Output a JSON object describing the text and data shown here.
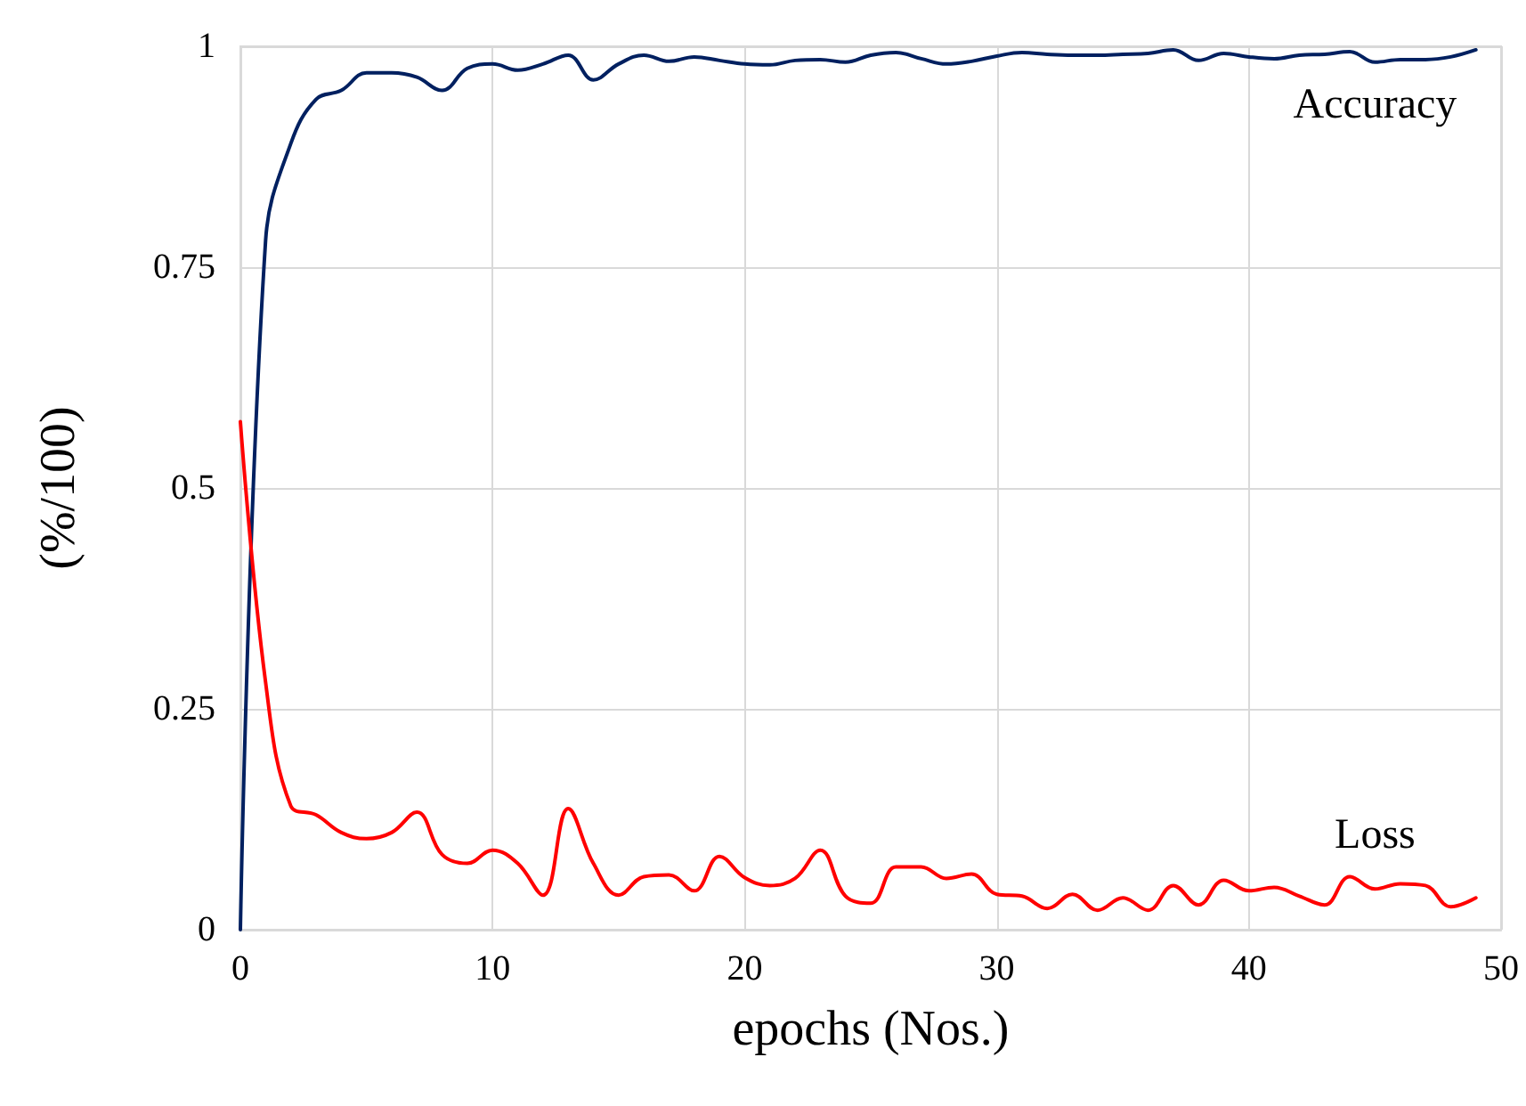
{
  "chart_data": {
    "type": "line",
    "xlabel": "epochs (Nos.)",
    "ylabel": "(%/100)",
    "x": [
      0,
      1,
      2,
      3,
      4,
      5,
      6,
      7,
      8,
      9,
      10,
      11,
      12,
      13,
      14,
      15,
      16,
      17,
      18,
      19,
      20,
      21,
      22,
      23,
      24,
      25,
      26,
      27,
      28,
      29,
      30,
      31,
      32,
      33,
      34,
      35,
      36,
      37,
      38,
      39,
      40,
      41,
      42,
      43,
      44,
      45,
      46,
      47,
      48,
      49
    ],
    "series": [
      {
        "name": "Accuracy",
        "color": "#002060",
        "values": [
          0,
          0.78,
          0.89,
          0.94,
          0.95,
          0.97,
          0.97,
          0.965,
          0.95,
          0.975,
          0.98,
          0.973,
          0.98,
          0.99,
          0.962,
          0.98,
          0.99,
          0.983,
          0.988,
          0.984,
          0.98,
          0.979,
          0.984,
          0.985,
          0.982,
          0.99,
          0.993,
          0.986,
          0.98,
          0.983,
          0.989,
          0.993,
          0.991,
          0.99,
          0.99,
          0.991,
          0.992,
          0.996,
          0.984,
          0.992,
          0.988,
          0.986,
          0.99,
          0.991,
          0.994,
          0.982,
          0.985,
          0.985,
          0.988,
          0.996
        ]
      },
      {
        "name": "Loss",
        "color": "#ff0000",
        "values": [
          0.575,
          0.28,
          0.14,
          0.13,
          0.11,
          0.103,
          0.11,
          0.133,
          0.085,
          0.075,
          0.09,
          0.075,
          0.039,
          0.137,
          0.075,
          0.039,
          0.06,
          0.062,
          0.044,
          0.083,
          0.059,
          0.05,
          0.058,
          0.09,
          0.038,
          0.03,
          0.071,
          0.071,
          0.058,
          0.063,
          0.04,
          0.038,
          0.024,
          0.04,
          0.022,
          0.036,
          0.022,
          0.05,
          0.028,
          0.056,
          0.044,
          0.048,
          0.038,
          0.028,
          0.06,
          0.046,
          0.052,
          0.05,
          0.026,
          0.036
        ]
      }
    ],
    "xlim": [
      0,
      50
    ],
    "xticks": [
      0,
      10,
      20,
      30,
      40,
      50
    ],
    "ylim": [
      0,
      1
    ],
    "yticks": [
      0,
      0.25,
      0.5,
      0.75,
      1
    ],
    "grid": true,
    "legend": false,
    "marker": "none",
    "line_style": "solid"
  }
}
